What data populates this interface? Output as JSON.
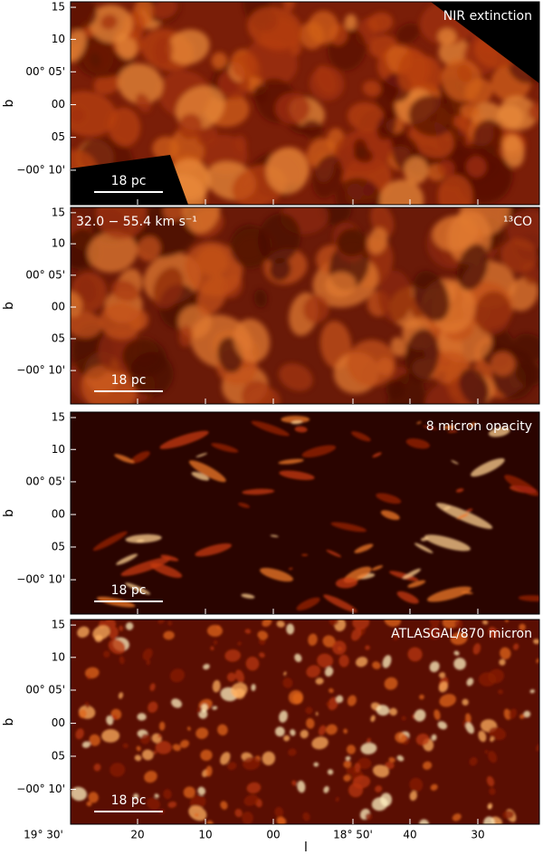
{
  "panels": [
    {
      "label": "NIR extinction",
      "scale_bar": "18 pc"
    },
    {
      "velocity_range": "32.0 − 55.4 km s⁻¹",
      "label": "¹³CO",
      "scale_bar": "18 pc"
    },
    {
      "label": "8 micron opacity",
      "scale_bar": "18 pc"
    },
    {
      "label": "ATLASGAL/870 micron",
      "scale_bar": "18 pc"
    }
  ],
  "y_axis": {
    "label": "b",
    "ticks": [
      "15",
      "10",
      "00° 05'",
      "00",
      "05",
      "−00° 10'"
    ]
  },
  "x_axis": {
    "label": "l",
    "ticks": [
      "19° 30'",
      "20",
      "10",
      "00",
      "18° 50'",
      "40",
      "30"
    ]
  }
}
